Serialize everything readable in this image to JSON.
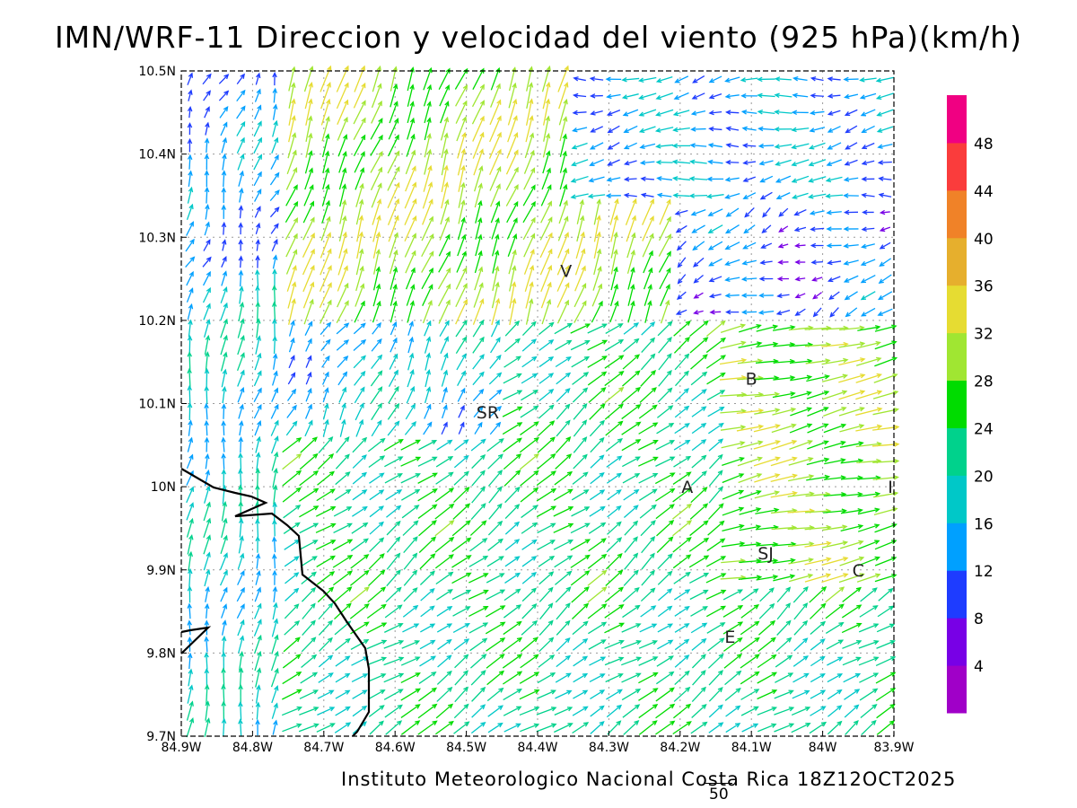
{
  "title": "IMN/WRF-11 Direccion y velocidad del viento (925 hPa)(km/h)",
  "footer": "Instituto Meteorologico Nacional Costa Rica 18Z12OCT2025",
  "reference_vector_label": "50",
  "map": {
    "lon_range": [
      -84.9,
      -83.9
    ],
    "lat_range": [
      9.7,
      10.5
    ],
    "x_tick_labels": [
      "84.9W",
      "84.8W",
      "84.7W",
      "84.6W",
      "84.5W",
      "84.4W",
      "84.3W",
      "84.2W",
      "84.1W",
      "84W",
      "83.9W"
    ],
    "y_tick_labels": [
      "9.7N",
      "9.8N",
      "9.9N",
      "10N",
      "10.1N",
      "10.2N",
      "10.3N",
      "10.4N",
      "10.5N"
    ],
    "grid": "dotted",
    "places": [
      {
        "label": "SR",
        "lon": -84.47,
        "lat": 10.09
      },
      {
        "label": "V",
        "lon": -84.36,
        "lat": 10.26
      },
      {
        "label": "B",
        "lon": -84.1,
        "lat": 10.13
      },
      {
        "label": "A",
        "lon": -84.19,
        "lat": 10.0
      },
      {
        "label": "I",
        "lon": -83.905,
        "lat": 10.0
      },
      {
        "label": "SJ",
        "lon": -84.08,
        "lat": 9.92
      },
      {
        "label": "C",
        "lon": -83.95,
        "lat": 9.9
      },
      {
        "label": "E",
        "lon": -84.13,
        "lat": 9.82
      }
    ]
  },
  "colorbar": {
    "labels": [
      "4",
      "8",
      "12",
      "16",
      "20",
      "24",
      "28",
      "32",
      "36",
      "40",
      "44",
      "48"
    ],
    "colors": [
      "#a000c8",
      "#7800e6",
      "#1e3cff",
      "#00a0ff",
      "#00c8c8",
      "#00d28c",
      "#00dc00",
      "#a0e632",
      "#e6dc32",
      "#e6af2d",
      "#f08228",
      "#fa3c3c",
      "#f00082"
    ]
  },
  "coastline_color": "#000000"
}
